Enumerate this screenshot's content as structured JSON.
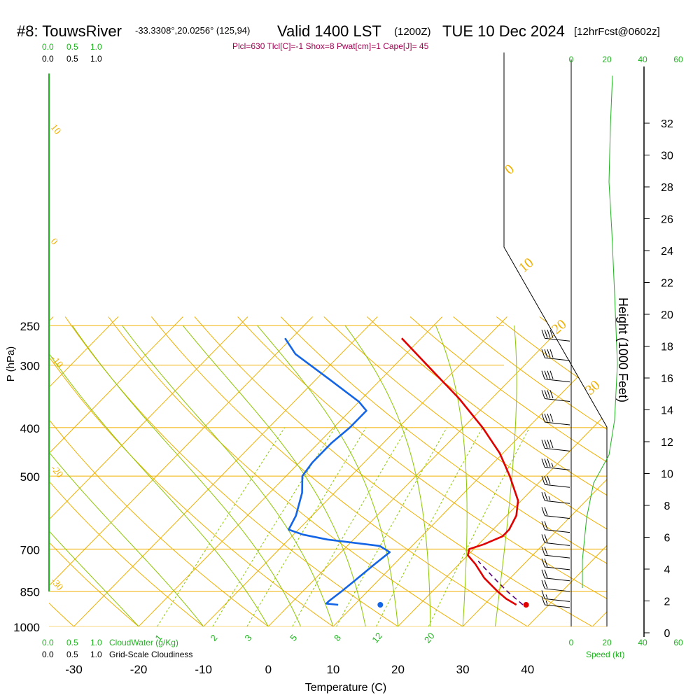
{
  "header": {
    "station": "#8: TouwsRiver",
    "coords": "-33.3308°,20.0256° (125,94)",
    "valid": "Valid 1400 LST",
    "zulu": "(1200Z)",
    "date": "TUE 10 Dec 2024",
    "fcst": "[12hrFcst@0602z]",
    "params": "Plcl=630 Tlcl[C]=-1 Shox=8 Pwat[cm]=1 Cape[J]= 45"
  },
  "colors": {
    "temp": "#e00000",
    "dewpoint": "#1464e6",
    "isotherm": "#f0b000",
    "dry_adiabat": "#f0b000",
    "moist_adiabat": "#8cc800",
    "mixing_ratio": "#8cc800",
    "green_label": "#1eb41e",
    "params_text": "#a00050",
    "parcel": "#5a0078"
  },
  "scales": {
    "cloudwater_ticks": [
      "0.0",
      "0.5",
      "1.0"
    ],
    "cloudiness_ticks": [
      "0.0",
      "0.5",
      "1.0"
    ],
    "cloudwater_label": "CloudWater (g/Kg)",
    "cloudiness_label": "Grid-Scale Cloudiness",
    "speed_ticks": [
      "0",
      "20",
      "40",
      "60"
    ],
    "speed_label": "Speed (kt)"
  },
  "chart_data": {
    "type": "skew-t log-p sounding",
    "xlabel": "Temperature (C)",
    "ylabel": "P (hPa)",
    "y2label": "Height (1000 Feet)",
    "x_ticks": [
      -30,
      -20,
      -10,
      0,
      10,
      20,
      30,
      40
    ],
    "pressure_ticks": [
      250,
      300,
      400,
      500,
      700,
      850,
      1000
    ],
    "height_ticks_kft": [
      0,
      2,
      4,
      6,
      8,
      10,
      12,
      14,
      16,
      18,
      20,
      22,
      24,
      26,
      28,
      30,
      32
    ],
    "isotherm_labels": [
      {
        "text": "10",
        "t": 10
      },
      {
        "text": "0",
        "t": 0
      },
      {
        "text": "-10",
        "t": -10
      },
      {
        "text": "-20",
        "t": -20
      },
      {
        "text": "-30",
        "t": -30
      },
      {
        "text": "0",
        "t": 0
      },
      {
        "text": "10",
        "t": 10
      },
      {
        "text": "20",
        "t": 20
      },
      {
        "text": "30",
        "t": 30
      }
    ],
    "mixing_ratio_labels": [
      "1",
      "2",
      "3",
      "5",
      "8",
      "12",
      "20"
    ],
    "mixing_ratio_values": [
      1,
      2,
      3,
      5,
      8,
      12,
      20
    ],
    "temperature_profile": {
      "name": "Temperature",
      "points": [
        [
          905,
          35.0
        ],
        [
          880,
          32.5
        ],
        [
          850,
          30.0
        ],
        [
          800,
          26.0
        ],
        [
          750,
          22.5
        ],
        [
          720,
          20.0
        ],
        [
          700,
          19.3
        ],
        [
          685,
          20.8
        ],
        [
          660,
          22.5
        ],
        [
          640,
          22.5
        ],
        [
          600,
          21.5
        ],
        [
          560,
          19.5
        ],
        [
          500,
          14.5
        ],
        [
          450,
          9.5
        ],
        [
          400,
          3.0
        ],
        [
          350,
          -5.0
        ],
        [
          300,
          -15.0
        ],
        [
          265,
          -23.0
        ]
      ]
    },
    "dewpoint_profile": {
      "name": "Dewpoint",
      "points": [
        [
          905,
          7.5
        ],
        [
          900,
          5.5
        ],
        [
          890,
          5.5
        ],
        [
          850,
          6.0
        ],
        [
          800,
          6.5
        ],
        [
          750,
          7.0
        ],
        [
          710,
          7.5
        ],
        [
          690,
          5.0
        ],
        [
          670,
          -4.0
        ],
        [
          655,
          -8.5
        ],
        [
          640,
          -11.5
        ],
        [
          600,
          -12.5
        ],
        [
          540,
          -15.0
        ],
        [
          500,
          -17.5
        ],
        [
          470,
          -18.0
        ],
        [
          430,
          -18.0
        ],
        [
          400,
          -17.5
        ],
        [
          370,
          -17.5
        ],
        [
          355,
          -20.0
        ],
        [
          320,
          -28.0
        ],
        [
          285,
          -37.0
        ],
        [
          265,
          -41.0
        ]
      ]
    },
    "parcel_profile": {
      "name": "Parcel",
      "points": [
        [
          905,
          36.0
        ],
        [
          850,
          31.5
        ],
        [
          800,
          27.5
        ],
        [
          740,
          22.5
        ]
      ]
    },
    "surface_temp_marker": {
      "p": 905,
      "t": 36.5
    },
    "surface_dewpoint_marker": {
      "p": 905,
      "t": 14.0
    },
    "wind_profile": [
      {
        "p": 265,
        "speed_kt": 40
      },
      {
        "p": 290,
        "speed_kt": 40
      },
      {
        "p": 320,
        "speed_kt": 40
      },
      {
        "p": 350,
        "speed_kt": 40
      },
      {
        "p": 390,
        "speed_kt": 40
      },
      {
        "p": 440,
        "speed_kt": 40
      },
      {
        "p": 480,
        "speed_kt": 35
      },
      {
        "p": 520,
        "speed_kt": 30
      },
      {
        "p": 560,
        "speed_kt": 25
      },
      {
        "p": 600,
        "speed_kt": 20
      },
      {
        "p": 640,
        "speed_kt": 20
      },
      {
        "p": 680,
        "speed_kt": 20
      },
      {
        "p": 720,
        "speed_kt": 20
      },
      {
        "p": 760,
        "speed_kt": 20
      },
      {
        "p": 800,
        "speed_kt": 20
      },
      {
        "p": 840,
        "speed_kt": 20
      },
      {
        "p": 880,
        "speed_kt": 15
      },
      {
        "p": 905,
        "speed_kt": 15
      }
    ]
  }
}
